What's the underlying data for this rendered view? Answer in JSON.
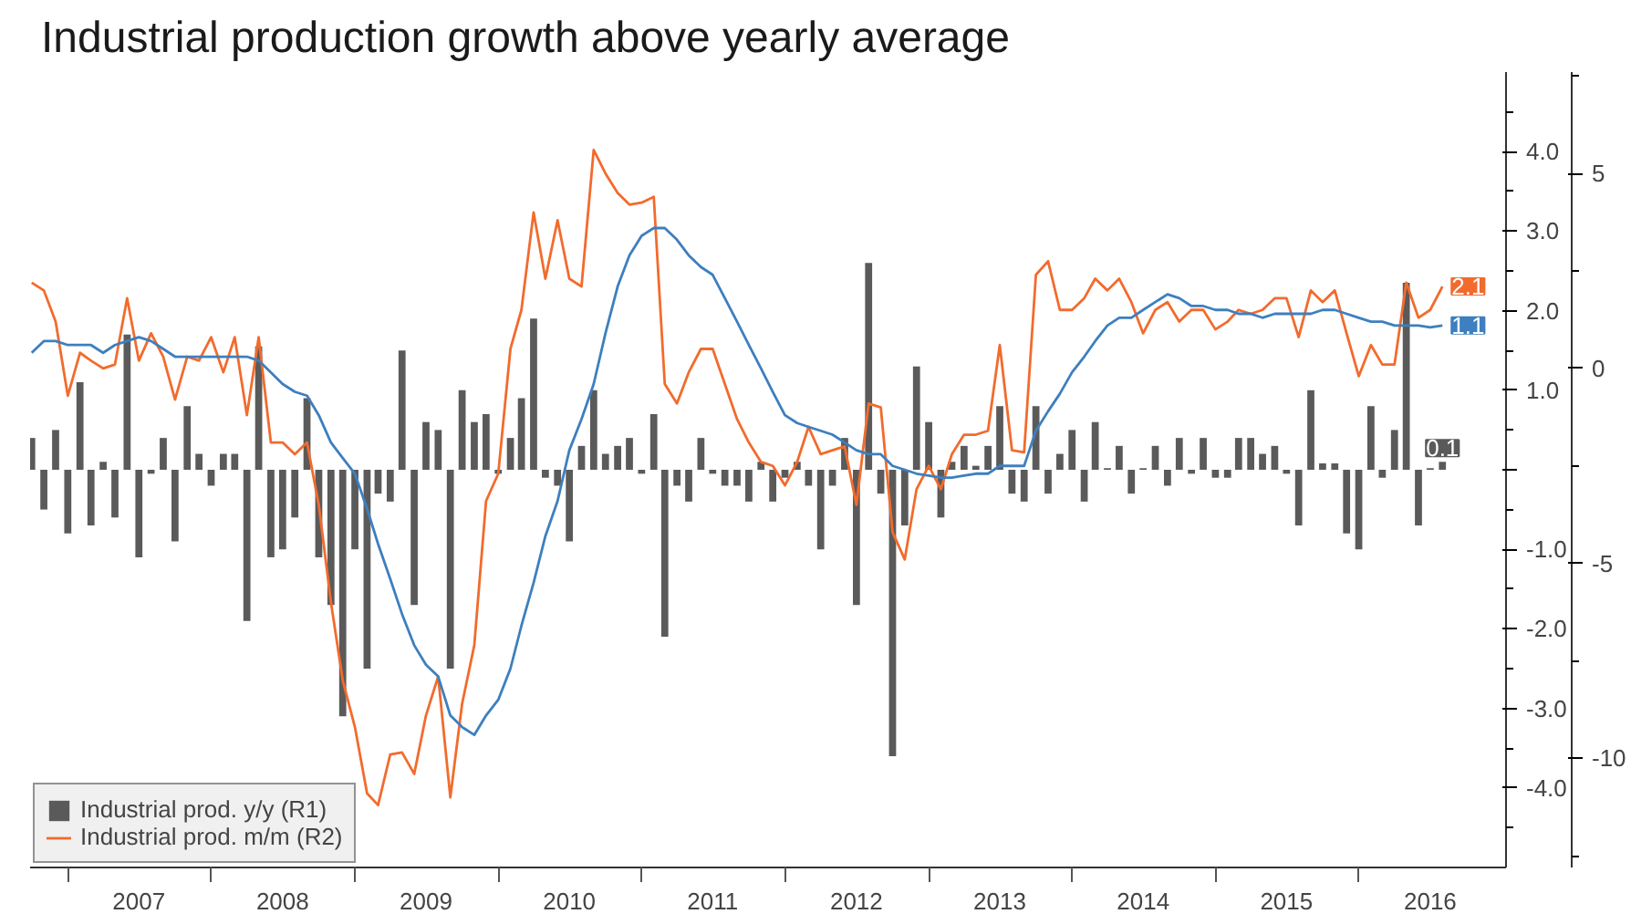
{
  "chart_data": {
    "type": "bar",
    "title": "Industrial production growth above yearly average",
    "x": [
      "2006-10",
      "2006-11",
      "2006-12",
      "2007-01",
      "2007-02",
      "2007-03",
      "2007-04",
      "2007-05",
      "2007-06",
      "2007-07",
      "2007-08",
      "2007-09",
      "2007-10",
      "2007-11",
      "2007-12",
      "2008-01",
      "2008-02",
      "2008-03",
      "2008-04",
      "2008-05",
      "2008-06",
      "2008-07",
      "2008-08",
      "2008-09",
      "2008-10",
      "2008-11",
      "2008-12",
      "2009-01",
      "2009-02",
      "2009-03",
      "2009-04",
      "2009-05",
      "2009-06",
      "2009-07",
      "2009-08",
      "2009-09",
      "2009-10",
      "2009-11",
      "2009-12",
      "2010-01",
      "2010-02",
      "2010-03",
      "2010-04",
      "2010-05",
      "2010-06",
      "2010-07",
      "2010-08",
      "2010-09",
      "2010-10",
      "2010-11",
      "2010-12",
      "2011-01",
      "2011-02",
      "2011-03",
      "2011-04",
      "2011-05",
      "2011-06",
      "2011-07",
      "2011-08",
      "2011-09",
      "2011-10",
      "2011-11",
      "2011-12",
      "2012-01",
      "2012-02",
      "2012-03",
      "2012-04",
      "2012-05",
      "2012-06",
      "2012-07",
      "2012-08",
      "2012-09",
      "2012-10",
      "2012-11",
      "2012-12",
      "2013-01",
      "2013-02",
      "2013-03",
      "2013-04",
      "2013-05",
      "2013-06",
      "2013-07",
      "2013-08",
      "2013-09",
      "2013-10",
      "2013-11",
      "2013-12",
      "2014-01",
      "2014-02",
      "2014-03",
      "2014-04",
      "2014-05",
      "2014-06",
      "2014-07",
      "2014-08",
      "2014-09",
      "2014-10",
      "2014-11",
      "2014-12",
      "2015-01",
      "2015-02",
      "2015-03",
      "2015-04",
      "2015-05",
      "2015-06",
      "2015-07",
      "2015-08",
      "2015-09",
      "2015-10",
      "2015-11",
      "2015-12",
      "2016-01",
      "2016-02",
      "2016-03",
      "2016-04",
      "2016-05",
      "2016-06",
      "2016-07",
      "2016-08"
    ],
    "series": [
      {
        "name": "Industrial prod. y/y (R1)",
        "color": "#5a5a5a",
        "values": [
          0.4,
          -0.5,
          0.5,
          -0.8,
          1.1,
          -0.7,
          0.1,
          -0.6,
          1.7,
          -1.1,
          -0.05,
          0.4,
          -0.9,
          0.8,
          0.2,
          -0.2,
          0.2,
          0.2,
          -1.9,
          1.55,
          -1.1,
          -1.0,
          -0.6,
          0.9,
          -1.1,
          -1.7,
          -3.1,
          -1.0,
          -2.5,
          -0.3,
          -0.4,
          1.5,
          -1.7,
          0.6,
          0.5,
          -2.5,
          1.0,
          0.6,
          0.7,
          -0.05,
          0.4,
          0.9,
          1.9,
          -0.1,
          -0.2,
          -0.9,
          0.3,
          1.0,
          0.2,
          0.3,
          0.4,
          -0.05,
          0.7,
          -2.1,
          -0.2,
          -0.4,
          0.4,
          -0.05,
          -0.2,
          -0.2,
          -0.4,
          0.1,
          -0.4,
          -0.1,
          0.1,
          -0.2,
          -1.0,
          -0.2,
          0.4,
          -1.7,
          2.6,
          -0.3,
          -3.6,
          -0.7,
          1.3,
          0.6,
          -0.6,
          0.1,
          0.3,
          0.05,
          0.3,
          0.8,
          -0.3,
          -0.4,
          0.8,
          -0.3,
          0.2,
          0.5,
          -0.4,
          0.6,
          0.02,
          0.3,
          -0.3,
          0.02,
          0.3,
          -0.2,
          0.4,
          -0.05,
          0.4,
          -0.1,
          -0.1,
          0.4,
          0.4,
          0.2,
          0.3,
          -0.05,
          -0.7,
          1.0,
          0.08,
          0.08,
          -0.8,
          -1.0,
          0.8,
          -0.1,
          0.5,
          2.35,
          -0.7,
          0.02,
          0.1
        ],
        "value_labels": [
          null,
          null,
          null,
          null,
          null,
          null,
          null,
          null,
          null,
          null,
          null,
          null,
          null,
          null,
          null,
          null,
          null,
          null,
          null,
          null,
          null,
          null,
          null,
          null,
          null,
          null,
          null,
          null,
          null,
          null,
          null,
          null,
          null,
          null,
          null,
          null,
          null,
          null,
          null,
          null,
          null,
          null,
          null,
          null,
          null,
          null,
          null,
          null,
          null,
          null,
          null,
          null,
          null,
          null,
          null,
          null,
          null,
          null,
          null,
          null,
          null,
          null,
          null,
          null,
          null,
          null,
          null,
          null,
          null,
          null,
          null,
          null,
          null,
          null,
          null,
          null,
          null,
          null,
          null,
          null,
          null,
          null,
          null,
          null,
          null,
          null,
          null,
          null,
          null,
          null,
          null,
          null,
          null,
          null,
          null,
          null,
          null,
          null,
          null,
          null,
          null,
          null,
          null,
          null,
          null,
          null,
          null,
          null,
          null,
          null,
          null,
          null,
          null,
          null,
          null,
          null,
          null,
          null,
          "0.1"
        ]
      },
      {
        "name": "Industrial prod. m/m (R2)",
        "type": "line",
        "axis": "y2",
        "color": "#f26b2d",
        "values": [
          2.2,
          2.0,
          1.2,
          -0.7,
          0.4,
          0.2,
          0.0,
          0.1,
          1.8,
          0.2,
          0.9,
          0.3,
          -0.8,
          0.3,
          0.2,
          0.8,
          -0.1,
          0.8,
          -1.2,
          0.8,
          -1.9,
          -1.9,
          -2.2,
          -1.9,
          -3.5,
          -6.0,
          -8.0,
          -9.2,
          -10.9,
          -11.2,
          -9.9,
          -9.85,
          -10.4,
          -8.9,
          -7.9,
          -11.0,
          -8.6,
          -7.1,
          -3.4,
          -2.7,
          0.5,
          1.5,
          4.0,
          2.3,
          3.8,
          2.3,
          2.1,
          5.6,
          5.0,
          4.5,
          4.2,
          4.25,
          4.4,
          -0.4,
          -0.9,
          -0.1,
          0.5,
          0.5,
          -0.4,
          -1.3,
          -1.9,
          -2.4,
          -2.5,
          -3.0,
          -2.4,
          -1.5,
          -2.2,
          -2.1,
          -2.0,
          -3.5,
          -0.9,
          -1.0,
          -4.2,
          -4.9,
          -3.1,
          -2.5,
          -3.1,
          -2.2,
          -1.7,
          -1.7,
          -1.6,
          0.6,
          -2.1,
          -2.15,
          2.4,
          2.75,
          1.5,
          1.5,
          1.8,
          2.3,
          2.0,
          2.3,
          1.7,
          0.9,
          1.5,
          1.7,
          1.2,
          1.5,
          1.5,
          1.0,
          1.2,
          1.5,
          1.4,
          1.5,
          1.8,
          1.8,
          0.8,
          2.0,
          1.7,
          2.0,
          0.9,
          -0.2,
          0.6,
          0.1,
          0.1,
          2.2,
          1.3,
          1.5,
          2.1
        ],
        "value_labels": [
          null,
          null,
          null,
          null,
          null,
          null,
          null,
          null,
          null,
          null,
          null,
          null,
          null,
          null,
          null,
          null,
          null,
          null,
          null,
          null,
          null,
          null,
          null,
          null,
          null,
          null,
          null,
          null,
          null,
          null,
          null,
          null,
          null,
          null,
          null,
          null,
          null,
          null,
          null,
          null,
          null,
          null,
          null,
          null,
          null,
          null,
          null,
          null,
          null,
          null,
          null,
          null,
          null,
          null,
          null,
          null,
          null,
          null,
          null,
          null,
          null,
          null,
          null,
          null,
          null,
          null,
          null,
          null,
          null,
          null,
          null,
          null,
          null,
          null,
          null,
          null,
          null,
          null,
          null,
          null,
          null,
          null,
          null,
          null,
          null,
          null,
          null,
          null,
          null,
          null,
          null,
          null,
          null,
          null,
          null,
          null,
          null,
          null,
          null,
          null,
          null,
          null,
          null,
          null,
          null,
          null,
          null,
          null,
          null,
          null,
          null,
          null,
          null,
          null,
          null,
          null,
          null,
          null,
          "2.1"
        ]
      },
      {
        "type": "line",
        "axis": "y2",
        "color": "#3d7fbf",
        "values": [
          0.4,
          0.7,
          0.7,
          0.6,
          0.6,
          0.6,
          0.4,
          0.6,
          0.7,
          0.8,
          0.7,
          0.5,
          0.3,
          0.3,
          0.3,
          0.3,
          0.3,
          0.3,
          0.3,
          0.2,
          -0.1,
          -0.4,
          -0.6,
          -0.7,
          -1.2,
          -1.9,
          -2.3,
          -2.7,
          -3.6,
          -4.5,
          -5.4,
          -6.3,
          -7.1,
          -7.6,
          -7.9,
          -8.9,
          -9.2,
          -9.4,
          -8.9,
          -8.5,
          -7.7,
          -6.6,
          -5.5,
          -4.3,
          -3.4,
          -2.1,
          -1.3,
          -0.4,
          0.9,
          2.1,
          2.9,
          3.4,
          3.6,
          3.6,
          3.3,
          2.9,
          2.6,
          2.4,
          1.8,
          1.2,
          0.6,
          0.0,
          -0.6,
          -1.2,
          -1.4,
          -1.5,
          -1.6,
          -1.7,
          -1.9,
          -2.1,
          -2.2,
          -2.2,
          -2.5,
          -2.6,
          -2.7,
          -2.75,
          -2.8,
          -2.8,
          -2.75,
          -2.7,
          -2.7,
          -2.5,
          -2.5,
          -2.5,
          -1.6,
          -1.1,
          -0.65,
          -0.1,
          0.3,
          0.7,
          1.1,
          1.3,
          1.3,
          1.5,
          1.7,
          1.9,
          1.8,
          1.6,
          1.6,
          1.5,
          1.5,
          1.4,
          1.4,
          1.3,
          1.4,
          1.4,
          1.4,
          1.4,
          1.5,
          1.5,
          1.4,
          1.3,
          1.2,
          1.2,
          1.1,
          1.1,
          1.1,
          1.05,
          1.1
        ],
        "value_labels": [
          null,
          null,
          null,
          null,
          null,
          null,
          null,
          null,
          null,
          null,
          null,
          null,
          null,
          null,
          null,
          null,
          null,
          null,
          null,
          null,
          null,
          null,
          null,
          null,
          null,
          null,
          null,
          null,
          null,
          null,
          null,
          null,
          null,
          null,
          null,
          null,
          null,
          null,
          null,
          null,
          null,
          null,
          null,
          null,
          null,
          null,
          null,
          null,
          null,
          null,
          null,
          null,
          null,
          null,
          null,
          null,
          null,
          null,
          null,
          null,
          null,
          null,
          null,
          null,
          null,
          null,
          null,
          null,
          null,
          null,
          null,
          null,
          null,
          null,
          null,
          null,
          null,
          null,
          null,
          null,
          null,
          null,
          null,
          null,
          null,
          null,
          null,
          null,
          null,
          null,
          null,
          null,
          null,
          null,
          null,
          null,
          null,
          null,
          null,
          null,
          null,
          null,
          null,
          null,
          null,
          null,
          null,
          null,
          null,
          null,
          null,
          null,
          null,
          null,
          null,
          null,
          null,
          null,
          "1.1"
        ]
      }
    ],
    "xlim": [
      "2006-09-27",
      "2017-01-10"
    ],
    "xticks": [
      {
        "value": "2007-01-01",
        "label": null
      },
      {
        "value": "2007-07-01",
        "label": "2007"
      },
      {
        "value": "2008-01-01",
        "label": null
      },
      {
        "value": "2008-07-01",
        "label": "2008"
      },
      {
        "value": "2009-01-01",
        "label": null
      },
      {
        "value": "2009-07-01",
        "label": "2009"
      },
      {
        "value": "2010-01-01",
        "label": null
      },
      {
        "value": "2010-07-01",
        "label": "2010"
      },
      {
        "value": "2011-01-01",
        "label": null
      },
      {
        "value": "2011-07-01",
        "label": "2011"
      },
      {
        "value": "2012-01-01",
        "label": null
      },
      {
        "value": "2012-07-01",
        "label": "2012"
      },
      {
        "value": "2013-01-01",
        "label": null
      },
      {
        "value": "2013-07-01",
        "label": "2013"
      },
      {
        "value": "2014-01-01",
        "label": null
      },
      {
        "value": "2014-07-01",
        "label": "2014"
      },
      {
        "value": "2015-01-01",
        "label": null
      },
      {
        "value": "2015-07-01",
        "label": "2015"
      },
      {
        "value": "2016-01-01",
        "label": null
      },
      {
        "value": "2016-07-01",
        "label": "2016"
      }
    ],
    "ylim": [
      -5,
      5
    ],
    "yticks": [
      {
        "value": -4,
        "label": "-4.0"
      },
      {
        "value": -3,
        "label": "-3.0"
      },
      {
        "value": -2,
        "label": "-2.0"
      },
      {
        "value": -1,
        "label": "-1.0"
      },
      {
        "value": 0,
        "label": null
      },
      {
        "value": 1,
        "label": "1.0"
      },
      {
        "value": 2,
        "label": "2.0"
      },
      {
        "value": 3,
        "label": "3.0"
      },
      {
        "value": 4,
        "label": "4.0"
      }
    ],
    "y2lim": [
      -12.8,
      7.6
    ],
    "y2ticks": [
      -10,
      -5,
      0,
      5
    ],
    "legend": "bottom left",
    "grid": false
  }
}
